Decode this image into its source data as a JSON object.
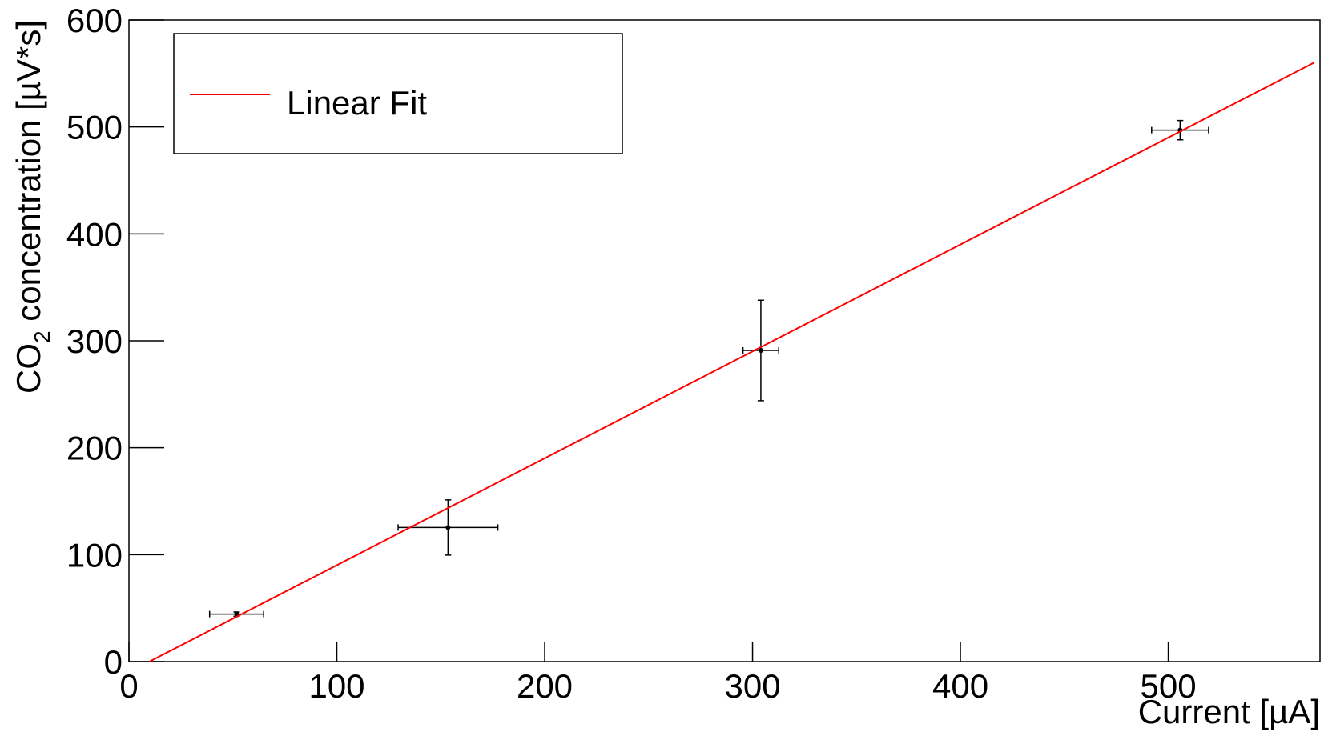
{
  "chart_data": {
    "type": "scatter",
    "x_label": "Current [µA]",
    "y_label": {
      "before": "CO",
      "subscript": "2",
      "after": " concentration [µV*s]"
    },
    "xlim": [
      0,
      573
    ],
    "xticks": [
      0,
      100,
      200,
      300,
      400,
      500
    ],
    "ylim": [
      0,
      600
    ],
    "yticks": [
      0,
      100,
      200,
      300,
      400,
      500,
      600
    ],
    "points": {
      "color": "#000000",
      "x": [
        51.8,
        153.5,
        304,
        505.7
      ],
      "values": [
        44.4,
        125.4,
        291,
        497
      ],
      "xerr": [
        13,
        24,
        8.6,
        13.7
      ],
      "yerr": [
        2,
        25.8,
        47,
        9
      ]
    },
    "series": [
      {
        "name": "Linear Fit",
        "color": "#ff0000",
        "x": [
          9.8,
          570
        ],
        "values": [
          0,
          560
        ]
      }
    ],
    "legend": "top-left"
  }
}
